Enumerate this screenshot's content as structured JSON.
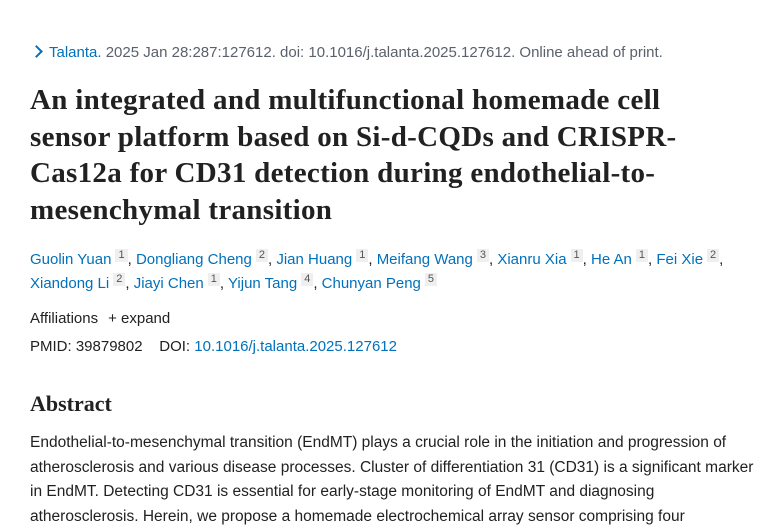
{
  "citation": {
    "journal": "Talanta.",
    "rest": " 2025 Jan 28:287:127612. doi: 10.1016/j.talanta.2025.127612. Online ahead of print."
  },
  "title": "An integrated and multifunctional homemade cell sensor platform based on Si-d-CQDs and CRISPR-Cas12a for CD31 detection during endothelial-to-mesenchymal transition",
  "authors": [
    {
      "name": "Guolin Yuan",
      "aff": "1"
    },
    {
      "name": "Dongliang Cheng",
      "aff": "2"
    },
    {
      "name": "Jian Huang",
      "aff": "1"
    },
    {
      "name": "Meifang Wang",
      "aff": "3"
    },
    {
      "name": "Xianru Xia",
      "aff": "1"
    },
    {
      "name": "He An",
      "aff": "1"
    },
    {
      "name": "Fei Xie",
      "aff": "2"
    },
    {
      "name": "Xiandong Li",
      "aff": "2"
    },
    {
      "name": "Jiayi Chen",
      "aff": "1"
    },
    {
      "name": "Yijun Tang",
      "aff": "4"
    },
    {
      "name": "Chunyan Peng",
      "aff": "5"
    }
  ],
  "affiliations": {
    "label": "Affiliations",
    "expand": "+ expand"
  },
  "ids": {
    "pmid_label": "PMID:",
    "pmid": "39879802",
    "doi_label": "DOI:",
    "doi": "10.1016/j.talanta.2025.127612"
  },
  "abstract": {
    "heading": "Abstract",
    "text": "Endothelial-to-mesenchymal transition (EndMT) plays a crucial role in the initiation and progression of atherosclerosis and various disease processes. Cluster of differentiation 31 (CD31) is a significant marker in EndMT. Detecting CD31 is essential for early-stage monitoring of EndMT and diagnosing atherosclerosis. Herein, we propose a homemade electrochemical array sensor comprising four"
  },
  "colors": {
    "link": "#0071bc",
    "text": "#212121"
  }
}
